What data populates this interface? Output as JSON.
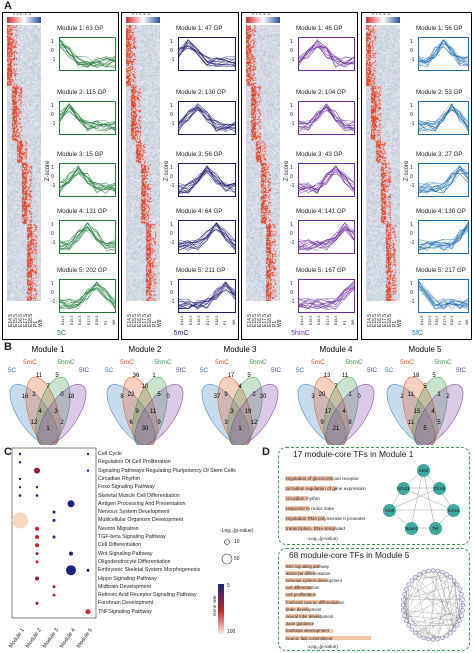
{
  "panels": {
    "a": "A",
    "b": "B",
    "c": "C",
    "d": "D"
  },
  "panelA": {
    "groups": [
      {
        "id": "5c",
        "label": "5C",
        "color": "#1f7a3a",
        "modules": [
          "Module 1: 63 GP",
          "Module 2: 115 GP",
          "Module 3: 15 GP",
          "Module 4: 131 GP",
          "Module 5: 202 GP"
        ]
      },
      {
        "id": "5mc",
        "label": "5mC",
        "color": "#1b1b6e",
        "modules": [
          "Module 1: 47 GP",
          "Module 2: 130 GP",
          "Module 3: 56 GP",
          "Module 4: 64 GP",
          "Module 5: 211 GP"
        ]
      },
      {
        "id": "5hmc",
        "label": "5hmC",
        "color": "#6a2c9a",
        "modules": [
          "Module 1: 46 GP",
          "Module 2: 104 GP",
          "Module 3: 43 GP",
          "Module 4: 141 GP",
          "Module 5: 167 GP"
        ]
      },
      {
        "id": "5fc",
        "label": "5fC",
        "color": "#1f6fb0",
        "modules": [
          "Module 1: 56 GP",
          "Module 2: 53 GP",
          "Module 3: 27 GP",
          "Module 4: 130 GP",
          "Module 5: 217 GP"
        ]
      }
    ],
    "zscore_label": "Z-score",
    "yticks": [
      "1",
      "0",
      "-1"
    ],
    "xticks": [
      "E14.5",
      "E15.5",
      "E16.5",
      "E17.5",
      "E18.5",
      "P1",
      "W8"
    ],
    "colorbar_ticks": "2 1 0 -1 -2"
  },
  "panelB": {
    "modules": [
      {
        "title": "Module 1",
        "nums": [
          "16",
          "11",
          "5",
          "18",
          "2",
          "7",
          "0",
          "4",
          "3",
          "12",
          "2",
          "1"
        ]
      },
      {
        "title": "Module 2",
        "nums": [
          "8",
          "36",
          "1",
          "0",
          "22",
          "10",
          "5",
          "9",
          "11",
          "6",
          "9",
          "30"
        ]
      },
      {
        "title": "Module 3",
        "nums": [
          "37",
          "17",
          "5",
          "30",
          "9",
          "4",
          "2",
          "3",
          "19",
          "3",
          "12",
          "1"
        ]
      },
      {
        "title": "Module 4",
        "nums": [
          "3",
          "13",
          "11",
          "0",
          "20",
          "7",
          "1",
          "17",
          "4",
          "9",
          "8",
          "21"
        ]
      },
      {
        "title": "Module 5",
        "nums": [
          "2",
          "18",
          "5",
          "2",
          "11",
          "5",
          "1",
          "15",
          "4",
          "11",
          "5",
          "5"
        ]
      }
    ],
    "labels": {
      "c": "5C",
      "mc": "5mC",
      "hmc": "5hmC",
      "fc": "5fC"
    },
    "colors": {
      "c": "#3a7ebf",
      "mc": "#e8541c",
      "hmc": "#3e9b4a",
      "fc": "#7b3fa0"
    }
  },
  "panelC": {
    "terms": [
      "Cell Cycle",
      "Regulation Of Cell Proliferation",
      "Signaling Pathways Regulating Pluripotency Of Stem Cells",
      "Circadian Rhythm",
      "Foxo Signaling Pathway",
      "Skeletal Muscle Cell Differentiation",
      "Antigen Processing And Presentation",
      "Nervous System Development",
      "Multicellular Organism Development",
      "Neuron Migration",
      "TGF-beta Signaling Pathway",
      "Cell Differentiation",
      "Wnt Signaling Pathway",
      "Oligodendrocyte Differentiation",
      "Embryonic Skeletal System Morphogenesis",
      "Hippo Signaling Pathway",
      "Midbrain Development",
      "Retinoic Acid Receptor Signaling Pathway",
      "Forebrain Development",
      "TNFSignaling Pathway"
    ],
    "xlabels": [
      "Module 1",
      "Module 2",
      "Module 3",
      "Module 4",
      "Module 5"
    ],
    "legend_title": "-Log₁₀(p-value)",
    "size_ticks": [
      "10",
      "50"
    ],
    "color_ticks": [
      "5",
      "100"
    ],
    "color_title": "Gene rate"
  },
  "panelD": {
    "box1": {
      "title": "17 module-core TFs in Module 1",
      "terms": [
        "regulation of glucocorticoid receptor",
        "circadian regulation of gene expression",
        "circadian rhythm",
        "response to redox state",
        "regulation RNA polymerase II promoter",
        "transcription, DNA-templated"
      ],
      "axis": "-Log₁₀(p-value)",
      "nodes": [
        "Sirt3",
        "Nr1d1",
        "Clock",
        "Arntl",
        "Esrra",
        "Npas2",
        "Tef"
      ]
    },
    "box2": {
      "title": "68 module-core TFs in Module 5",
      "terms": [
        "Wnt signaling pathway",
        "astrocyte differentiation",
        "nervous system development",
        "cell differentiation",
        "cell proliferation",
        "forebrain neuron differentiation",
        "brain development",
        "neural tube development",
        "axon guidance",
        "forebrain development",
        "neuron fate commitment"
      ],
      "axis": "-Log₁₀(p-value)"
    }
  }
}
